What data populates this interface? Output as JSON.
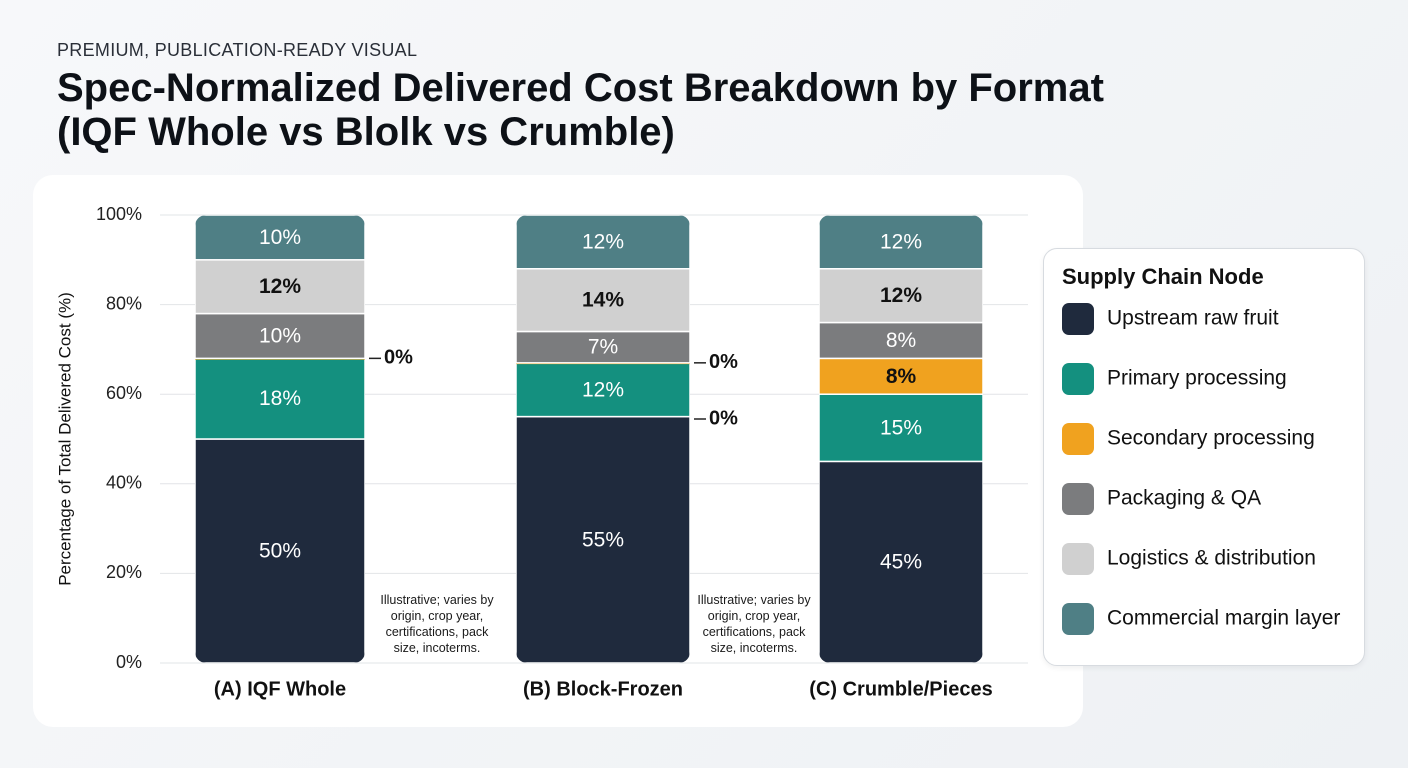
{
  "chart_data": {
    "type": "stacked_bar",
    "kicker": "PREMIUM, PUBLICATION-READY VISUAL",
    "title": [
      "Spec-Normalized Delivered Cost Breakdown by Format",
      "(IQF Whole vs Blolk vs Crumble)"
    ],
    "y_label": "Percentage of Total Delivered Cost (%)",
    "legend_title": "Supply Chain Node",
    "categories": [
      "(A) IQF Whole",
      "(B) Block-Frozen",
      "(C) Crumble/Pieces"
    ],
    "ylim": [
      0,
      100
    ],
    "yticks": [
      {
        "value": 0,
        "label": "0%"
      },
      {
        "value": 20,
        "label": "20%"
      },
      {
        "value": 40,
        "label": "40%"
      },
      {
        "value": 60,
        "label": "60%"
      },
      {
        "value": 80,
        "label": "80%"
      },
      {
        "value": 100,
        "label": "100%"
      }
    ],
    "grid": true,
    "legend_position": "right",
    "series": [
      {
        "name": "Upstream raw fruit",
        "color": "#1f2a3d",
        "values": [
          50,
          55,
          45
        ],
        "value_labels": [
          "50%",
          "55%",
          "45%"
        ]
      },
      {
        "name": "Primary processing",
        "color": "#14907f",
        "values": [
          18,
          12,
          15
        ],
        "value_labels": [
          "18%",
          "12%",
          "15%"
        ]
      },
      {
        "name": "Secondary processing",
        "color": "#f0a21f",
        "values": [
          0,
          0,
          8
        ],
        "value_labels": [
          "0%",
          "0%",
          "8%"
        ]
      },
      {
        "name": "Packaging & QA",
        "color": "#7b7c7e",
        "values": [
          10,
          7,
          8
        ],
        "value_labels": [
          "10%",
          "7%",
          "8%"
        ]
      },
      {
        "name": "Logistics & distribution",
        "color": "#d0d0d0",
        "values": [
          12,
          14,
          12
        ],
        "value_labels": [
          "12%",
          "14%",
          "12%"
        ]
      },
      {
        "name": "Commercial margin layer",
        "color": "#4f7f85",
        "values": [
          10,
          12,
          12
        ],
        "value_labels": [
          "10%",
          "12%",
          "12%"
        ]
      }
    ],
    "annotations": [
      "0%",
      "Illustrative; varies by origin, crop year, certifications, pack size, incoterms.",
      "Illustrative; varies by origin, crop year, certifications, pack size, incoterms."
    ]
  }
}
